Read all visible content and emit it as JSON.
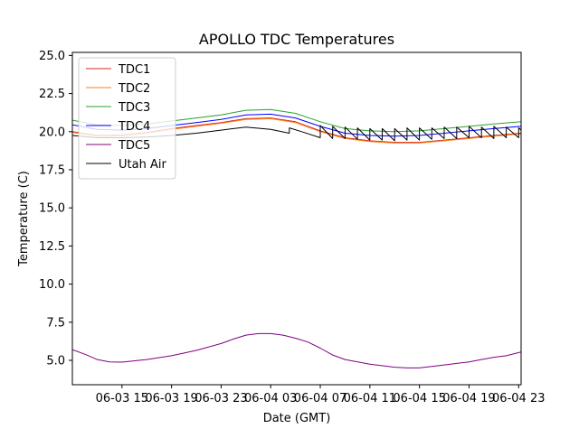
{
  "chart_data": {
    "type": "line",
    "title": "APOLLO TDC Temperatures",
    "xlabel": "Date (GMT)",
    "ylabel": "Temperature (C)",
    "x_unit": "hours since 06-03 11:00 GMT",
    "xlim": [
      0,
      36.2
    ],
    "ylim": [
      3.4,
      25.2
    ],
    "grid": false,
    "legend_position": "upper-left",
    "x_ticks": [
      {
        "value": 4,
        "label": "06-03 15"
      },
      {
        "value": 8,
        "label": "06-03 19"
      },
      {
        "value": 12,
        "label": "06-03 23"
      },
      {
        "value": 16,
        "label": "06-04 03"
      },
      {
        "value": 20,
        "label": "06-04 07"
      },
      {
        "value": 24,
        "label": "06-04 11"
      },
      {
        "value": 28,
        "label": "06-04 15"
      },
      {
        "value": 32,
        "label": "06-04 19"
      },
      {
        "value": 36,
        "label": "06-04 23"
      }
    ],
    "y_ticks": [
      {
        "value": 5.0,
        "label": "5.0"
      },
      {
        "value": 7.5,
        "label": "7.5"
      },
      {
        "value": 10.0,
        "label": "10.0"
      },
      {
        "value": 12.5,
        "label": "12.5"
      },
      {
        "value": 15.0,
        "label": "15.0"
      },
      {
        "value": 17.5,
        "label": "17.5"
      },
      {
        "value": 20.0,
        "label": "20.0"
      },
      {
        "value": 22.5,
        "label": "22.5"
      },
      {
        "value": 25.0,
        "label": "25.0"
      }
    ],
    "series": [
      {
        "name": "TDC1",
        "color": "#d62728",
        "points": [
          [
            0,
            20.0
          ],
          [
            2,
            19.75
          ],
          [
            4,
            19.78
          ],
          [
            6,
            19.95
          ],
          [
            8,
            20.2
          ],
          [
            10,
            20.4
          ],
          [
            12,
            20.6
          ],
          [
            14,
            20.85
          ],
          [
            16,
            20.9
          ],
          [
            18,
            20.65
          ],
          [
            20,
            20.05
          ],
          [
            22,
            19.6
          ],
          [
            24,
            19.4
          ],
          [
            26,
            19.3
          ],
          [
            28,
            19.3
          ],
          [
            30,
            19.45
          ],
          [
            32,
            19.6
          ],
          [
            34,
            19.75
          ],
          [
            36.2,
            19.9
          ]
        ]
      },
      {
        "name": "TDC2",
        "color": "#ff7f0e",
        "points": [
          [
            0,
            19.95
          ],
          [
            2,
            19.7
          ],
          [
            4,
            19.72
          ],
          [
            6,
            19.9
          ],
          [
            8,
            20.15
          ],
          [
            10,
            20.35
          ],
          [
            12,
            20.55
          ],
          [
            14,
            20.8
          ],
          [
            16,
            20.85
          ],
          [
            18,
            20.6
          ],
          [
            20,
            20.0
          ],
          [
            22,
            19.55
          ],
          [
            24,
            19.35
          ],
          [
            26,
            19.25
          ],
          [
            28,
            19.25
          ],
          [
            30,
            19.4
          ],
          [
            32,
            19.55
          ],
          [
            34,
            19.7
          ],
          [
            36.2,
            19.85
          ]
        ]
      },
      {
        "name": "TDC3",
        "color": "#2ca02c",
        "points": [
          [
            0,
            20.75
          ],
          [
            2,
            20.45
          ],
          [
            4,
            20.4
          ],
          [
            6,
            20.5
          ],
          [
            8,
            20.7
          ],
          [
            10,
            20.9
          ],
          [
            12,
            21.1
          ],
          [
            14,
            21.4
          ],
          [
            16,
            21.45
          ],
          [
            18,
            21.2
          ],
          [
            20,
            20.65
          ],
          [
            22,
            20.2
          ],
          [
            24,
            20.05
          ],
          [
            26,
            20.0
          ],
          [
            28,
            20.05
          ],
          [
            30,
            20.2
          ],
          [
            32,
            20.35
          ],
          [
            34,
            20.5
          ],
          [
            36.2,
            20.65
          ]
        ]
      },
      {
        "name": "TDC4",
        "color": "#0000ff",
        "points": [
          [
            0,
            20.45
          ],
          [
            2,
            20.15
          ],
          [
            4,
            20.1
          ],
          [
            6,
            20.2
          ],
          [
            8,
            20.4
          ],
          [
            10,
            20.6
          ],
          [
            12,
            20.8
          ],
          [
            14,
            21.1
          ],
          [
            16,
            21.15
          ],
          [
            18,
            20.9
          ],
          [
            20,
            20.35
          ],
          [
            22,
            19.9
          ],
          [
            24,
            19.75
          ],
          [
            26,
            19.7
          ],
          [
            28,
            19.75
          ],
          [
            30,
            19.9
          ],
          [
            32,
            20.05
          ],
          [
            34,
            20.2
          ],
          [
            36.2,
            20.35
          ]
        ]
      },
      {
        "name": "TDC5",
        "color": "#800080",
        "points": [
          [
            0,
            5.7
          ],
          [
            1,
            5.4
          ],
          [
            2,
            5.05
          ],
          [
            3,
            4.9
          ],
          [
            4,
            4.88
          ],
          [
            6,
            5.05
          ],
          [
            8,
            5.3
          ],
          [
            10,
            5.65
          ],
          [
            12,
            6.1
          ],
          [
            13,
            6.4
          ],
          [
            14,
            6.65
          ],
          [
            15,
            6.75
          ],
          [
            16,
            6.75
          ],
          [
            17,
            6.65
          ],
          [
            18,
            6.45
          ],
          [
            19,
            6.2
          ],
          [
            20,
            5.8
          ],
          [
            21,
            5.35
          ],
          [
            22,
            5.05
          ],
          [
            24,
            4.75
          ],
          [
            26,
            4.55
          ],
          [
            27,
            4.5
          ],
          [
            28,
            4.5
          ],
          [
            30,
            4.7
          ],
          [
            32,
            4.9
          ],
          [
            33,
            5.05
          ],
          [
            34,
            5.2
          ],
          [
            35,
            5.3
          ],
          [
            36.2,
            5.55
          ]
        ]
      },
      {
        "name": "Utah Air",
        "color": "#000000",
        "points": [
          [
            0,
            19.75
          ],
          [
            2,
            19.6
          ],
          [
            4,
            19.6
          ],
          [
            6,
            19.65
          ],
          [
            8,
            19.75
          ],
          [
            10,
            19.9
          ],
          [
            12,
            20.1
          ],
          [
            14,
            20.3
          ],
          [
            16,
            20.15
          ],
          [
            17.5,
            19.9
          ],
          [
            17.5,
            20.25
          ],
          [
            18.5,
            20.0
          ],
          [
            20,
            19.6
          ],
          [
            20,
            20.4
          ],
          [
            21,
            19.55
          ],
          [
            21,
            20.35
          ],
          [
            22,
            19.55
          ],
          [
            22,
            20.3
          ],
          [
            23,
            19.5
          ],
          [
            23,
            20.25
          ],
          [
            24,
            19.45
          ],
          [
            24,
            20.2
          ],
          [
            25,
            19.45
          ],
          [
            25,
            20.2
          ],
          [
            26,
            19.4
          ],
          [
            26,
            20.2
          ],
          [
            27,
            19.45
          ],
          [
            27,
            20.25
          ],
          [
            28,
            19.45
          ],
          [
            28,
            20.25
          ],
          [
            29,
            19.5
          ],
          [
            29,
            20.25
          ],
          [
            30,
            19.55
          ],
          [
            30,
            20.3
          ],
          [
            31,
            19.55
          ],
          [
            31,
            20.3
          ],
          [
            32,
            19.6
          ],
          [
            32,
            20.35
          ],
          [
            33,
            19.6
          ],
          [
            33,
            20.3
          ],
          [
            34,
            19.55
          ],
          [
            34,
            20.35
          ],
          [
            35,
            19.6
          ],
          [
            35,
            20.3
          ],
          [
            36,
            19.6
          ],
          [
            36,
            20.25
          ],
          [
            36.2,
            20.1
          ]
        ]
      }
    ]
  }
}
